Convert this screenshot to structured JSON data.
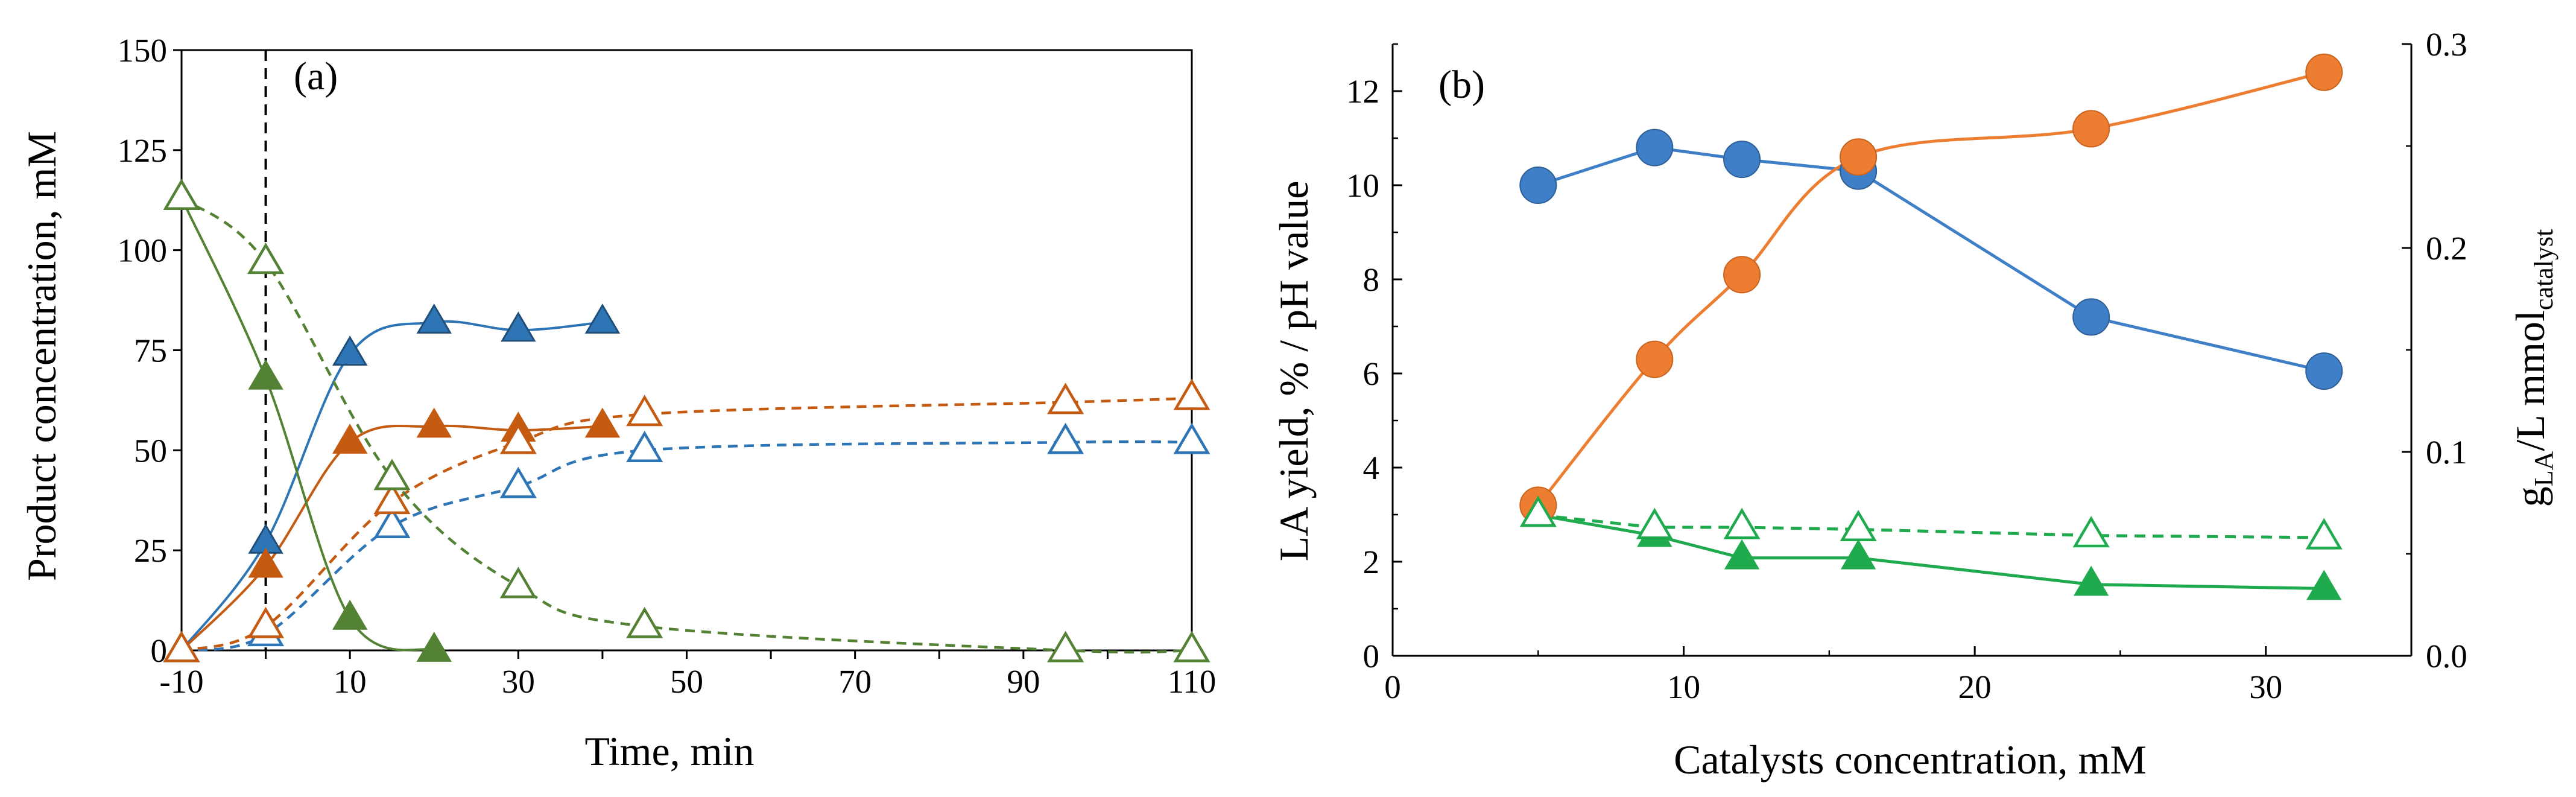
{
  "chart_data": [
    {
      "type": "line",
      "panel_label": "(a)",
      "xlabel": "Time, min",
      "ylabel": "Product concentration, mM",
      "xlim": [
        -10,
        110
      ],
      "ylim": [
        0,
        150
      ],
      "xtick_labels": [
        "-10",
        "10",
        "30",
        "50",
        "70",
        "90",
        "110"
      ],
      "ytick_labels": [
        "0",
        "25",
        "50",
        "75",
        "100",
        "125",
        "150"
      ],
      "vline_x": 0,
      "series": [
        {
          "name": "blue-filled",
          "color": "#2E75B6",
          "marker": "triangle",
          "filled": true,
          "dashed": false,
          "x": [
            -10,
            0,
            10,
            20,
            30,
            40
          ],
          "y": [
            0,
            27,
            74,
            82,
            80,
            82
          ]
        },
        {
          "name": "orange-filled",
          "color": "#C55A11",
          "marker": "triangle",
          "filled": true,
          "dashed": false,
          "x": [
            -10,
            0,
            10,
            20,
            30,
            40
          ],
          "y": [
            0,
            21,
            52,
            56,
            55,
            56
          ]
        },
        {
          "name": "green-filled",
          "color": "#548235",
          "marker": "triangle",
          "filled": true,
          "dashed": false,
          "x": [
            -10,
            0,
            10,
            20
          ],
          "y": [
            113,
            68,
            8,
            0
          ]
        },
        {
          "name": "blue-open",
          "color": "#2E75B6",
          "marker": "triangle",
          "filled": false,
          "dashed": true,
          "x": [
            -10,
            0,
            15,
            30,
            45,
            95,
            110
          ],
          "y": [
            0,
            4,
            31,
            41,
            50,
            52,
            52
          ]
        },
        {
          "name": "orange-open",
          "color": "#C55A11",
          "marker": "triangle",
          "filled": false,
          "dashed": true,
          "x": [
            -10,
            0,
            15,
            30,
            45,
            95,
            110
          ],
          "y": [
            0,
            6,
            37,
            52,
            59,
            62,
            63
          ]
        },
        {
          "name": "green-open",
          "color": "#548235",
          "marker": "triangle",
          "filled": false,
          "dashed": true,
          "x": [
            -10,
            0,
            15,
            30,
            45,
            95,
            110
          ],
          "y": [
            113,
            97,
            43,
            16,
            6,
            0,
            0
          ]
        }
      ]
    },
    {
      "type": "line",
      "panel_label": "(b)",
      "xlabel": "Catalysts concentration, mM",
      "ylabel": "LA yield, % / pH value",
      "y2label_main": "g",
      "y2label_sub1": "LA",
      "y2label_mid": "/L mmol",
      "y2label_sub2": "catalyst",
      "xlim": [
        0,
        35
      ],
      "ylim": [
        0,
        13
      ],
      "y2lim": [
        0,
        0.3
      ],
      "xtick_labels": [
        "0",
        "10",
        "20",
        "30"
      ],
      "ytick_labels": [
        "0",
        "2",
        "4",
        "6",
        "8",
        "10",
        "12"
      ],
      "y2tick_labels": [
        "0.0",
        "0.1",
        "0.2",
        "0.3"
      ],
      "series": [
        {
          "name": "blue-circles",
          "color": "#3F7FC8",
          "marker": "circle",
          "filled": true,
          "dashed": false,
          "axis": "left",
          "x": [
            5,
            9,
            12,
            16,
            24,
            32
          ],
          "y": [
            10.0,
            10.8,
            10.55,
            10.3,
            7.2,
            6.05
          ]
        },
        {
          "name": "orange-circles",
          "color": "#ED7D31",
          "marker": "circle",
          "filled": true,
          "dashed": false,
          "axis": "left",
          "x": [
            5,
            9,
            12,
            16,
            24,
            32
          ],
          "y": [
            3.2,
            6.3,
            8.1,
            10.6,
            11.2,
            12.4
          ]
        },
        {
          "name": "green-filled-triangles",
          "color": "#1FAA4E",
          "marker": "triangle",
          "filled": true,
          "dashed": false,
          "axis": "right",
          "x": [
            5,
            9,
            12,
            16,
            24,
            32
          ],
          "y": [
            0.069,
            0.059,
            0.048,
            0.048,
            0.035,
            0.033
          ]
        },
        {
          "name": "green-open-triangles",
          "color": "#1FAA4E",
          "marker": "triangle",
          "filled": false,
          "dashed": true,
          "axis": "right",
          "x": [
            5,
            9,
            12,
            16,
            24,
            32
          ],
          "y": [
            0.069,
            0.063,
            0.063,
            0.062,
            0.059,
            0.058
          ]
        }
      ]
    }
  ]
}
